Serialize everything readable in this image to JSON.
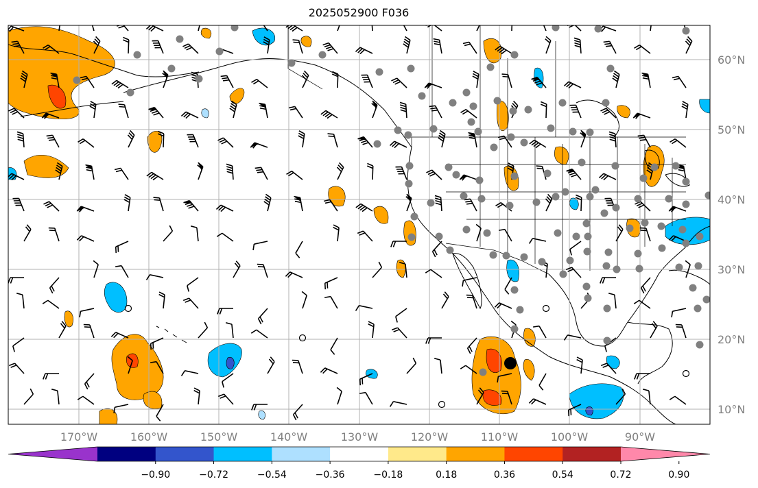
{
  "title": "2025052900 F036",
  "lat_labels": [
    "60°N",
    "50°N",
    "40°N",
    "30°N",
    "20°N",
    "10°N"
  ],
  "lon_labels": [
    "170°W",
    "160°W",
    "150°W",
    "140°W",
    "130°W",
    "120°W",
    "110°W",
    "100°W",
    "90°W"
  ],
  "colorbar": {
    "colors": [
      "#9933cc",
      "#000080",
      "#3355cc",
      "#00bfff",
      "#aee0ff",
      "#ffffff",
      "#ffe98a",
      "#ffa500",
      "#ff4500",
      "#b22222",
      "#ff88aa"
    ],
    "tick_labels": [
      "−0.90",
      "−0.72",
      "−0.54",
      "−0.36",
      "−0.18",
      "0.18",
      "0.36",
      "0.54",
      "0.72",
      "0.90"
    ]
  },
  "colors": {
    "land_outline": "#000000",
    "grid": "#b0b0b0",
    "station": "#808080",
    "barb": "#000000"
  }
}
